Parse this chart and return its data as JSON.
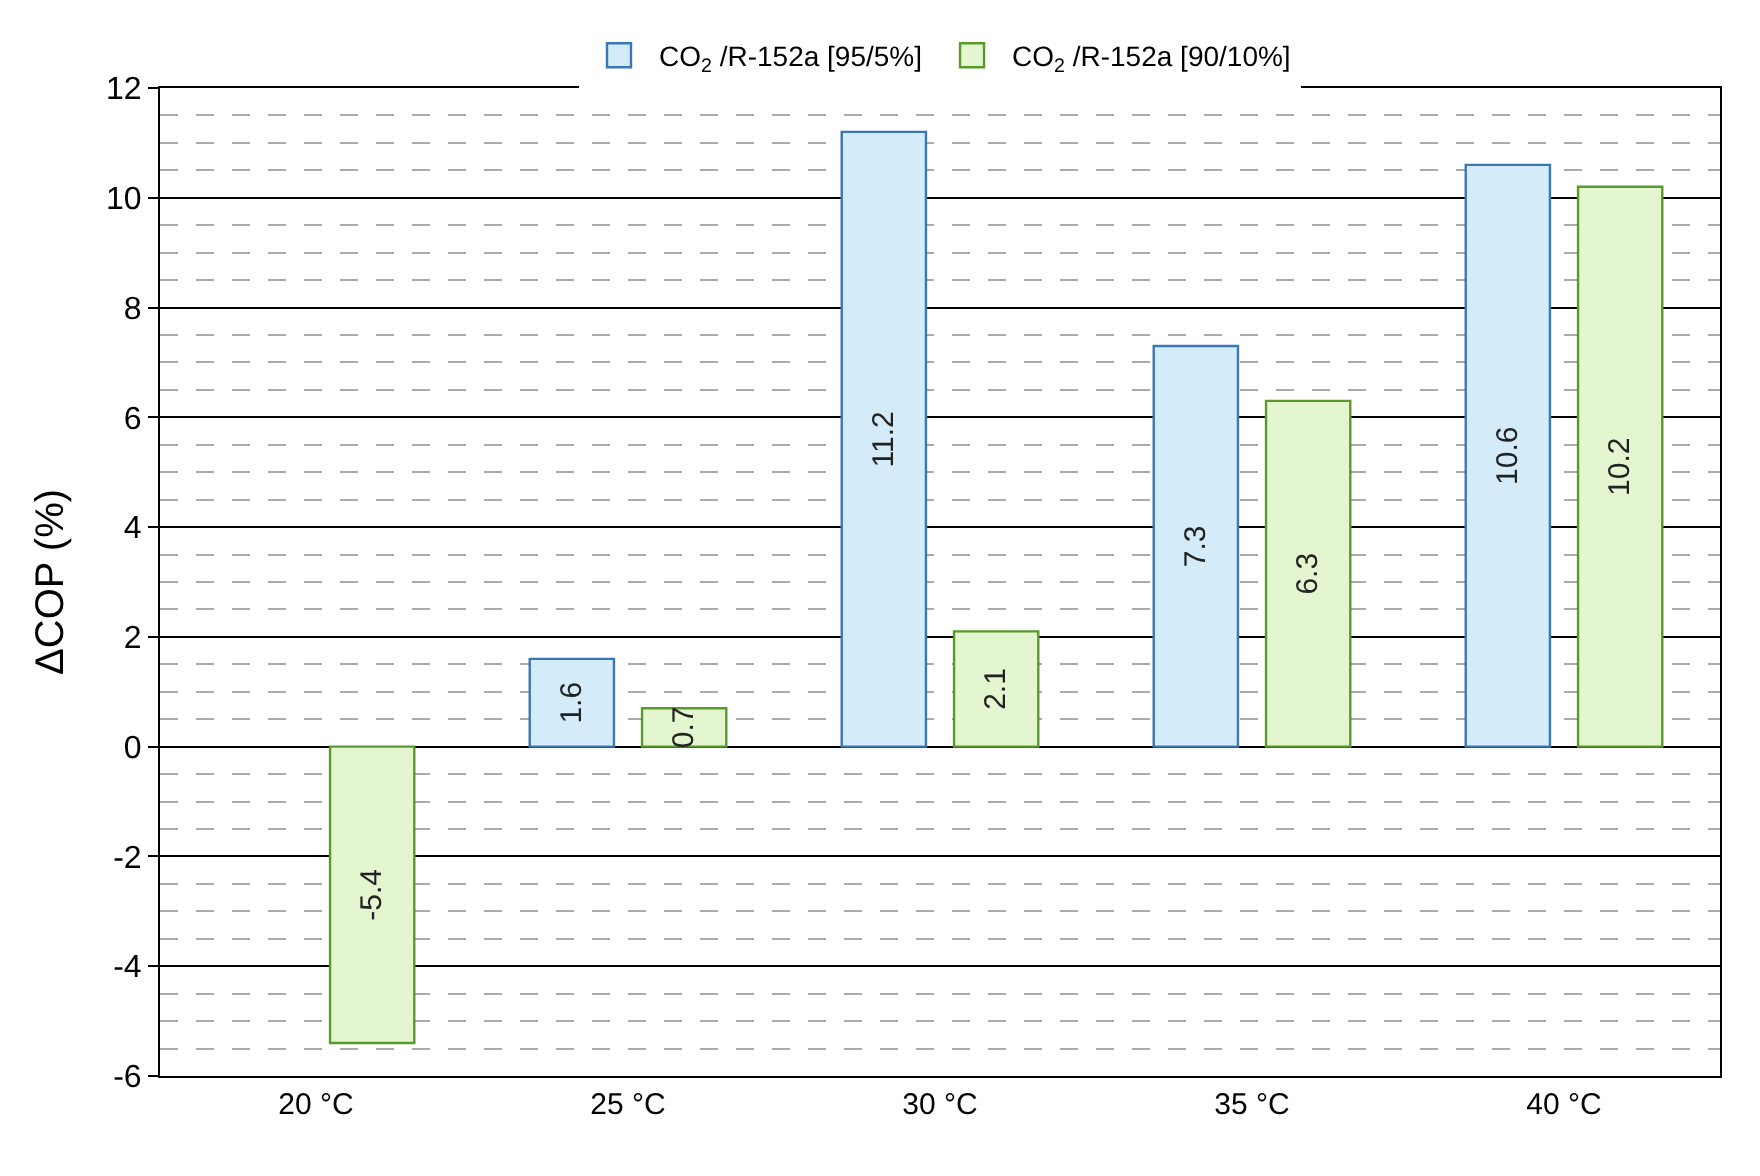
{
  "chart_data": {
    "type": "bar",
    "ylabel": "ΔCOP (%)",
    "categories": [
      "20 °C",
      "25 °C",
      "30 °C",
      "35 °C",
      "40 °C"
    ],
    "series": [
      {
        "name": "CO$_{2}$ /R-152a [95/5%]",
        "color": "#d4ebfa",
        "values": [
          null,
          1.6,
          11.2,
          7.3,
          10.6
        ]
      },
      {
        "name": "CO$_{2}$ /R-152a [90/10%]",
        "color": "#e4f6cf",
        "values": [
          -5.4,
          0.7,
          2.1,
          6.3,
          10.2
        ]
      }
    ],
    "ylim": [
      -6,
      12
    ],
    "yticks": [
      -6,
      -4,
      -2,
      0,
      2,
      4,
      6,
      8,
      10,
      12
    ],
    "grid": true,
    "legend": "top",
    "data_labels": true
  }
}
